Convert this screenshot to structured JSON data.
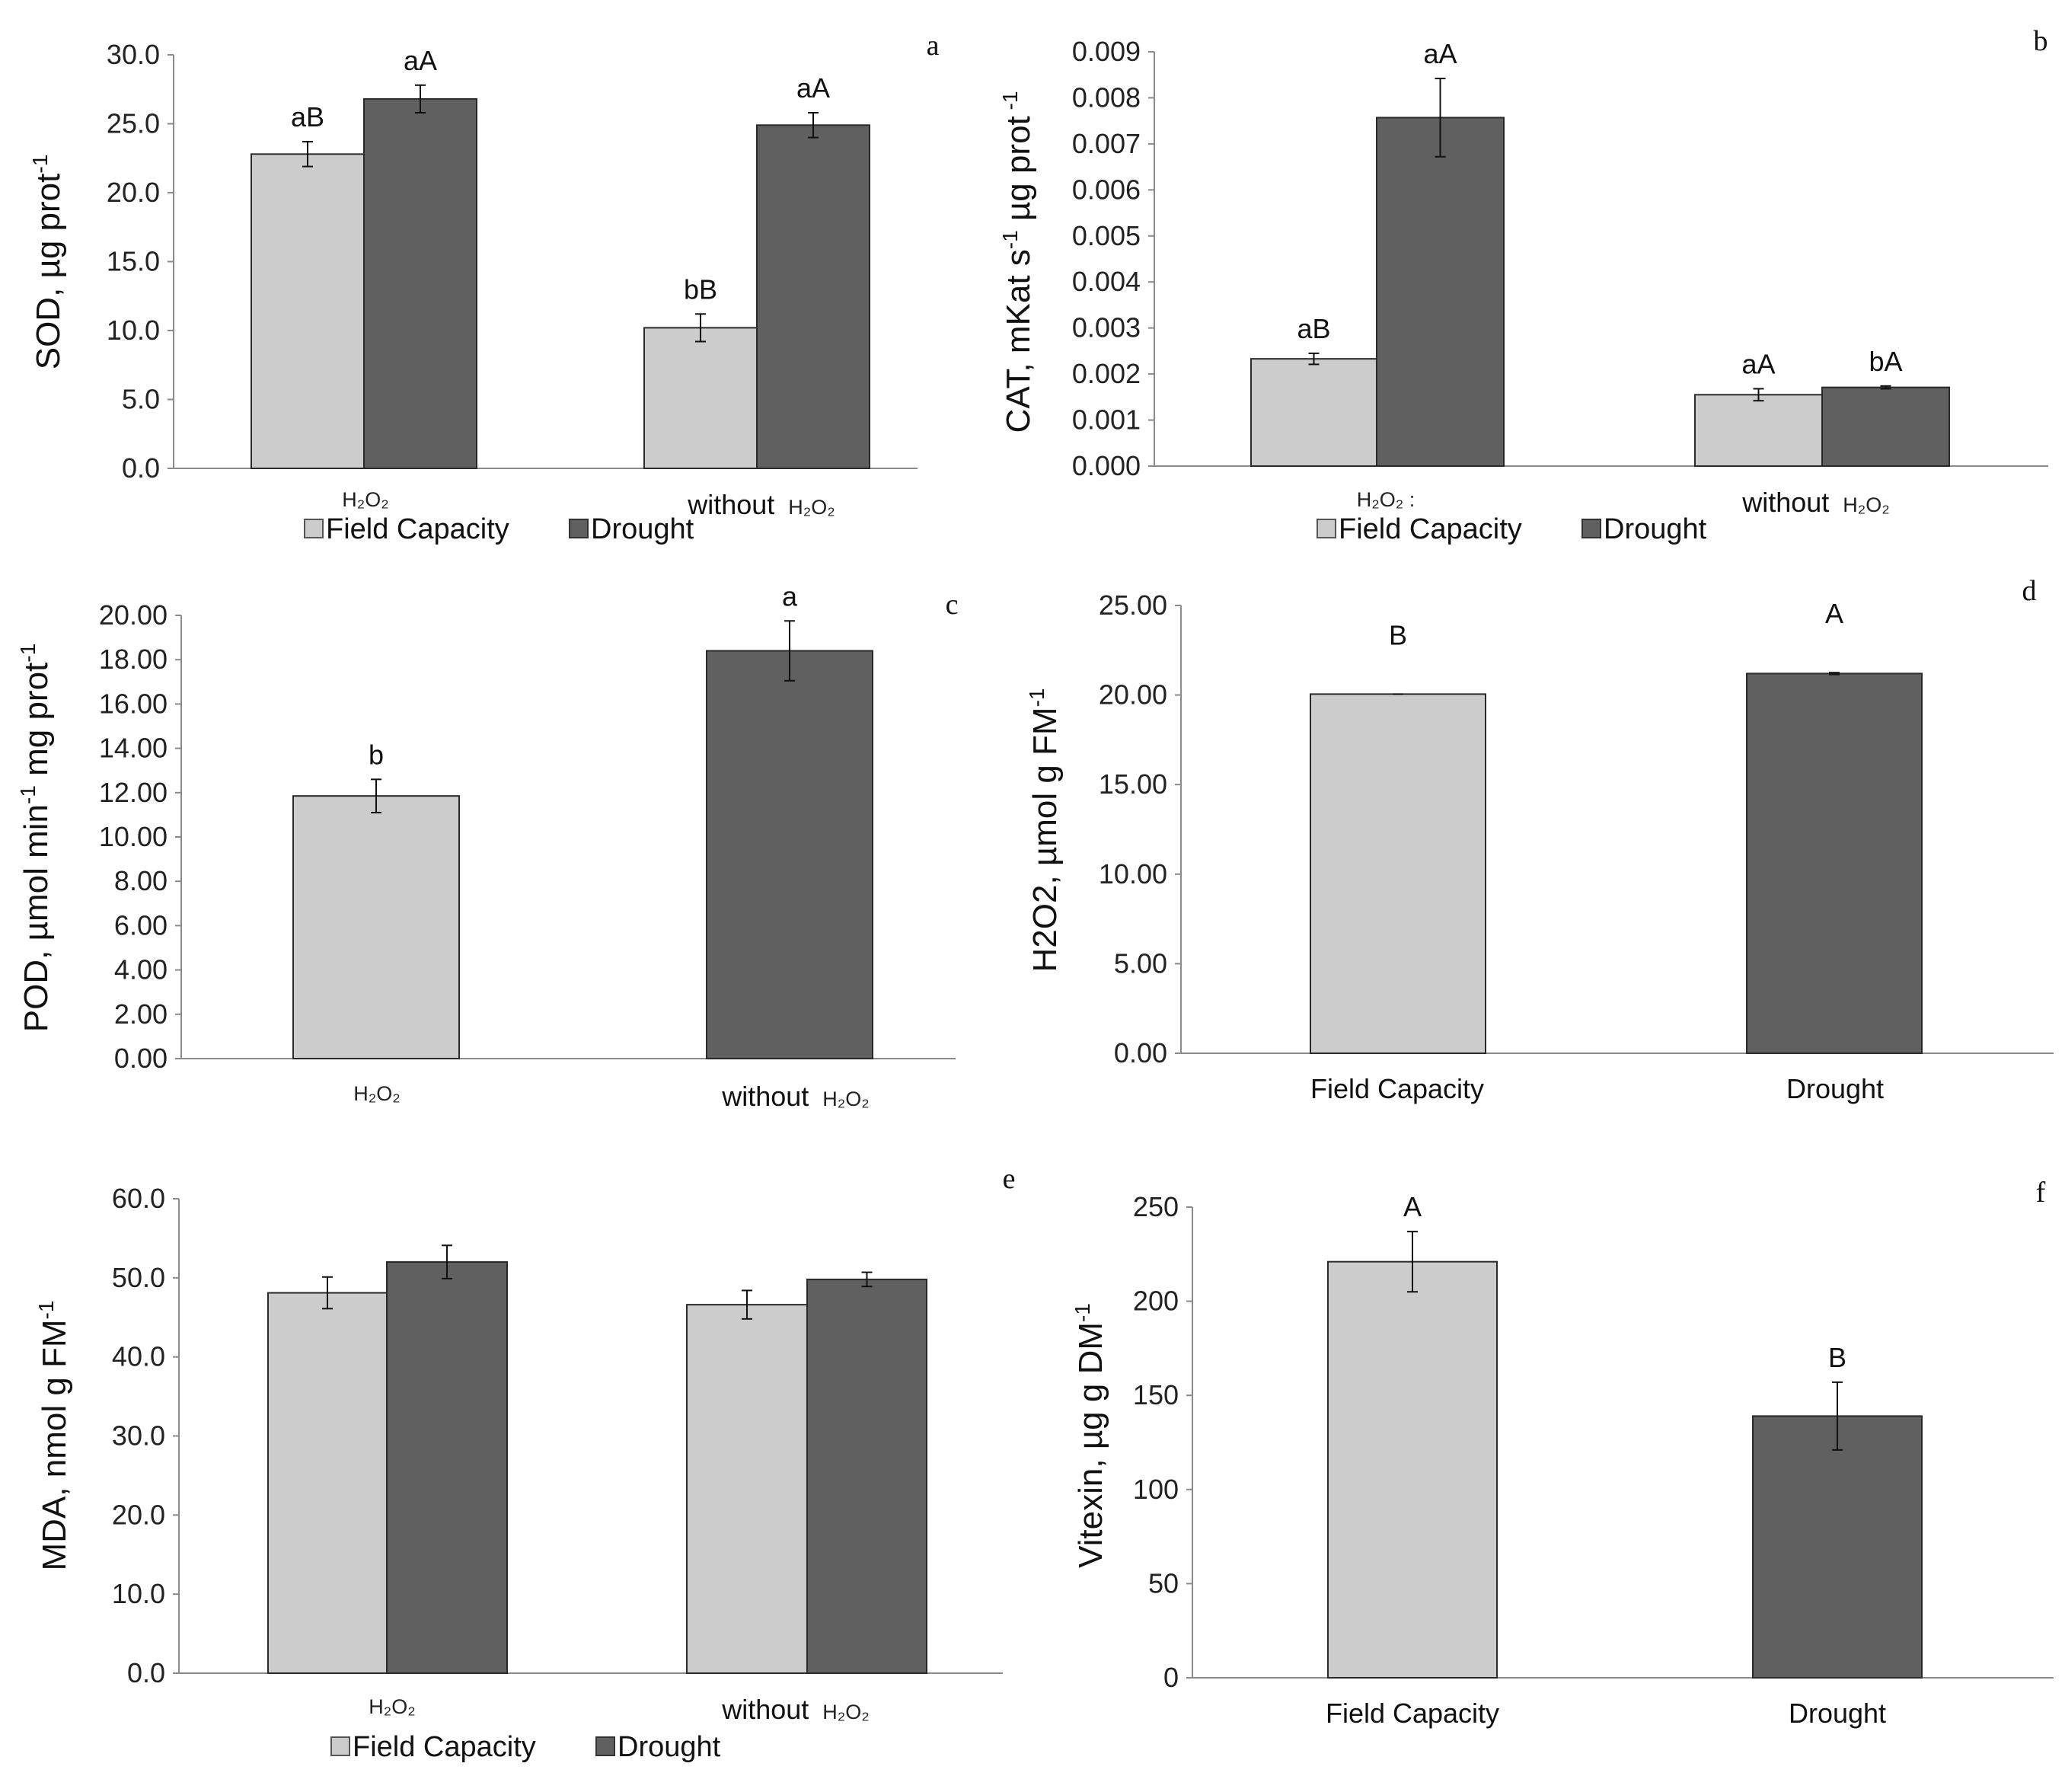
{
  "colors": {
    "field_capacity": "#cccccc",
    "drought": "#606060",
    "axis": "#8a8a8a",
    "bar_edge": "#2a2a2a"
  },
  "legend": {
    "field_capacity": "Field Capacity",
    "drought": "Drought"
  },
  "chart_data": [
    {
      "id": "a",
      "panel_letter": "a",
      "type": "bar",
      "ylabel": "SOD, µg prot",
      "ylabel_sup": "-1",
      "ylim": [
        0,
        30
      ],
      "yticks": [
        "0.0",
        "5.0",
        "10.0",
        "15.0",
        "20.0",
        "25.0",
        "30.0"
      ],
      "categories": [
        {
          "prefix": "",
          "chem": "H₂O₂"
        },
        {
          "prefix": "without",
          "chem": "H₂O₂"
        }
      ],
      "series": [
        {
          "name": "Field Capacity",
          "values": [
            22.8,
            10.2
          ],
          "errors": [
            0.9,
            1.0
          ],
          "labels": [
            "aB",
            "bB"
          ]
        },
        {
          "name": "Drought",
          "values": [
            26.8,
            24.9
          ],
          "errors": [
            1.0,
            0.9
          ],
          "labels": [
            "aA",
            "aA"
          ]
        }
      ],
      "legend": true
    },
    {
      "id": "b",
      "panel_letter": "b",
      "type": "bar",
      "ylabel": "CAT, mKat s",
      "ylabel_sup": "-1",
      "ylabel_tail": " µg prot",
      "ylabel_sup2": " -1",
      "ylim": [
        0,
        0.009
      ],
      "yticks": [
        "0.000",
        "0.001",
        "0.002",
        "0.003",
        "0.004",
        "0.005",
        "0.006",
        "0.007",
        "0.008",
        "0.009"
      ],
      "categories": [
        {
          "prefix": "",
          "chem": "H₂O₂ :"
        },
        {
          "prefix": "without",
          "chem": "H₂O₂"
        }
      ],
      "series": [
        {
          "name": "Field Capacity",
          "values": [
            0.00233,
            0.00155
          ],
          "errors": [
            0.00012,
            0.00013
          ],
          "labels": [
            "aB",
            "aA"
          ]
        },
        {
          "name": "Drought",
          "values": [
            0.00757,
            0.00171
          ],
          "errors": [
            0.00085,
            3e-05
          ],
          "labels": [
            "aA",
            "bA"
          ]
        }
      ],
      "legend": true
    },
    {
      "id": "c",
      "panel_letter": "c",
      "type": "bar",
      "ylabel": "POD, µmol min",
      "ylabel_sup": "-1",
      "ylabel_tail": " mg prot",
      "ylabel_sup2": "-1",
      "ylim": [
        0,
        20
      ],
      "yticks": [
        "0.00",
        "2.00",
        "4.00",
        "6.00",
        "8.00",
        "10.00",
        "12.00",
        "14.00",
        "16.00",
        "18.00",
        "20.00"
      ],
      "categories": [
        {
          "prefix": "",
          "chem": "H₂O₂"
        },
        {
          "prefix": "without",
          "chem": "H₂O₂"
        }
      ],
      "series": [
        {
          "name": "Field Capacity",
          "values": [
            11.85,
            null
          ],
          "errors": [
            0.75,
            null
          ],
          "labels": [
            "b",
            null
          ]
        },
        {
          "name": "Drought",
          "values": [
            null,
            18.4
          ],
          "errors": [
            null,
            1.35
          ],
          "labels": [
            null,
            "a"
          ]
        }
      ],
      "legend": false
    },
    {
      "id": "d",
      "panel_letter": "d",
      "type": "bar",
      "ylabel": "H2O2, µmol g FM",
      "ylabel_sup": "-1",
      "ylim": [
        0,
        25
      ],
      "yticks": [
        "0.00",
        "5.00",
        "10.00",
        "15.00",
        "20.00",
        "25.00"
      ],
      "categories": [
        {
          "prefix": "Field Capacity",
          "chem": ""
        },
        {
          "prefix": "Drought",
          "chem": ""
        }
      ],
      "series": [
        {
          "name": "Field Capacity",
          "values": [
            20.05,
            null
          ],
          "errors": [
            0.0,
            null
          ],
          "labels": [
            "B",
            null
          ]
        },
        {
          "name": "Drought",
          "values": [
            null,
            21.2
          ],
          "errors": [
            null,
            0.05
          ],
          "labels": [
            null,
            "A"
          ]
        }
      ],
      "legend": false
    },
    {
      "id": "e",
      "panel_letter": "e",
      "type": "bar",
      "ylabel": "MDA, nmol g FM",
      "ylabel_sup": "-1",
      "ylim": [
        0,
        60
      ],
      "yticks": [
        "0.0",
        "10.0",
        "20.0",
        "30.0",
        "40.0",
        "50.0",
        "60.0"
      ],
      "categories": [
        {
          "prefix": "",
          "chem": "H₂O₂"
        },
        {
          "prefix": "without",
          "chem": "H₂O₂"
        }
      ],
      "series": [
        {
          "name": "Field Capacity",
          "values": [
            48.1,
            46.6
          ],
          "errors": [
            2.0,
            1.8
          ],
          "labels": [
            null,
            null
          ]
        },
        {
          "name": "Drought",
          "values": [
            52.0,
            49.8
          ],
          "errors": [
            2.1,
            0.9
          ],
          "labels": [
            null,
            null
          ]
        }
      ],
      "legend": true
    },
    {
      "id": "f",
      "panel_letter": "f",
      "type": "bar",
      "ylabel": "Vitexin, µg g DM",
      "ylabel_sup": "-1",
      "ylim": [
        0,
        250
      ],
      "yticks": [
        "0",
        "50",
        "100",
        "150",
        "200",
        "250"
      ],
      "categories": [
        {
          "prefix": "Field Capacity",
          "chem": ""
        },
        {
          "prefix": "Drought",
          "chem": ""
        }
      ],
      "series": [
        {
          "name": "Field Capacity",
          "values": [
            221,
            null
          ],
          "errors": [
            16,
            null
          ],
          "labels": [
            "A",
            null
          ]
        },
        {
          "name": "Drought",
          "values": [
            null,
            139
          ],
          "errors": [
            null,
            18
          ],
          "labels": [
            null,
            "B"
          ]
        }
      ],
      "legend": false
    }
  ]
}
